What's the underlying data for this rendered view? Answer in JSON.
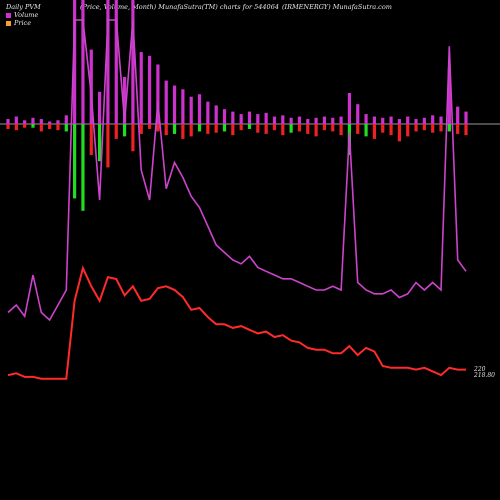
{
  "header": {
    "left": "Daily PVM",
    "center": "(Price, Volume, Month) MunafaSutra(TM) charts for 544064",
    "right": "(IRMENERGY) MunafaSutra.com"
  },
  "legend": {
    "volume_label": "Volume",
    "price_label": "Price",
    "volume_color": "#cc33cc",
    "price_color": "#ff9933"
  },
  "price_labels": {
    "upper": "220",
    "lower": "218.80"
  },
  "colors": {
    "background": "#000000",
    "volume_bar": "#cc33cc",
    "up_bar": "#22dd22",
    "down_bar": "#ee2222",
    "price_line": "#ff2a2a",
    "volume_line": "#cc44cc",
    "baseline": "#cccccc"
  },
  "chart_data": {
    "type": "bar",
    "series": [
      {
        "name": "Volume",
        "values": [
          4,
          6,
          3,
          5,
          4,
          2,
          3,
          7,
          100,
          100,
          60,
          26,
          100,
          100,
          38,
          100,
          58,
          55,
          48,
          35,
          31,
          28,
          22,
          24,
          18,
          15,
          12,
          10,
          8,
          10,
          8,
          9,
          6,
          7,
          5,
          6,
          4,
          5,
          6,
          5,
          6,
          25,
          16,
          8,
          6,
          5,
          6,
          4,
          6,
          4,
          5,
          7,
          6,
          45,
          14,
          10
        ]
      },
      {
        "name": "Price",
        "values": [
          221,
          222,
          220,
          220,
          219,
          219,
          219,
          219,
          262,
          280,
          270,
          262,
          275,
          274,
          265,
          270,
          262,
          263,
          269,
          270,
          268,
          264,
          257,
          258,
          253,
          249,
          249,
          247,
          248,
          246,
          244,
          245,
          242,
          243,
          240,
          239,
          236,
          235,
          235,
          233,
          233,
          237,
          232,
          236,
          234,
          226,
          225,
          225,
          225,
          224,
          225,
          223,
          221,
          225,
          224,
          224
        ]
      }
    ],
    "volume_line": [
      22,
      24,
      21,
      32,
      22,
      20,
      24,
      28,
      100,
      100,
      80,
      52,
      100,
      100,
      73,
      100,
      60,
      52,
      78,
      55,
      62,
      58,
      53,
      50,
      45,
      40,
      38,
      36,
      35,
      37,
      34,
      33,
      32,
      31,
      31,
      30,
      29,
      28,
      28,
      29,
      28,
      70,
      30,
      28,
      27,
      27,
      28,
      26,
      27,
      30,
      28,
      30,
      28,
      93,
      36,
      33
    ],
    "signed_bars": [
      -4,
      -5,
      -3,
      -3,
      -6,
      -4,
      -5,
      -6,
      -60,
      -70,
      -25,
      -30,
      -35,
      -12,
      -10,
      -22,
      -8,
      -4,
      -6,
      -9,
      -8,
      -12,
      -10,
      -6,
      -8,
      -7,
      -6,
      -9,
      -5,
      -4,
      -7,
      -8,
      -5,
      -9,
      -7,
      -6,
      -8,
      -10,
      -5,
      -6,
      -9,
      -25,
      -8,
      -10,
      -12,
      -7,
      -9,
      -14,
      -10,
      -6,
      -5,
      -7,
      -6,
      -6,
      -8,
      -9
    ],
    "signed_up": [
      false,
      false,
      false,
      true,
      false,
      false,
      false,
      true,
      true,
      true,
      false,
      true,
      false,
      false,
      true,
      false,
      false,
      false,
      false,
      false,
      true,
      false,
      false,
      true,
      false,
      false,
      true,
      false,
      false,
      true,
      false,
      false,
      false,
      false,
      true,
      false,
      false,
      false,
      false,
      false,
      false,
      true,
      false,
      true,
      false,
      false,
      false,
      false,
      false,
      false,
      false,
      false,
      false,
      true,
      false,
      false
    ],
    "ylim_volume": [
      0,
      100
    ],
    "ylim_price": [
      210,
      290
    ],
    "title": "",
    "xlabel": "",
    "ylabel": ""
  }
}
